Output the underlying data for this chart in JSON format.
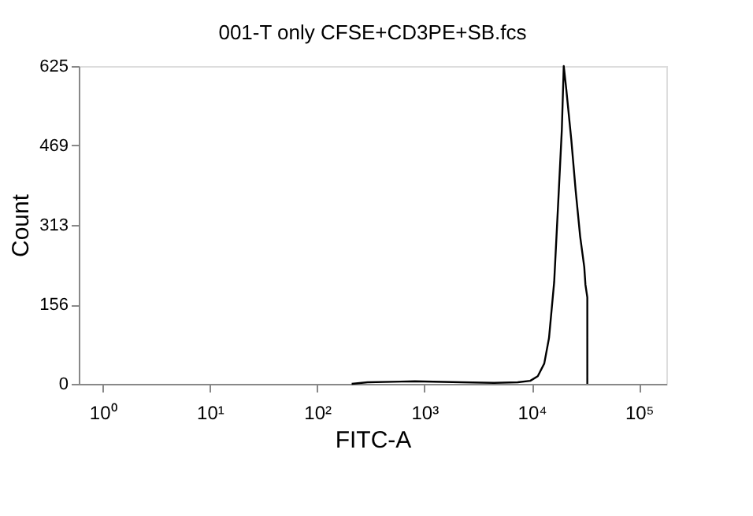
{
  "chart_data": {
    "type": "line",
    "title": "001-T only CFSE+CD3PE+SB.fcs",
    "xlabel": "FITC-A",
    "ylabel": "Count",
    "log": "x",
    "grid": false,
    "marker": "none",
    "line_style": "solid",
    "xlim": [
      0.6,
      180000
    ],
    "ylim": [
      0,
      625
    ],
    "xticks": [
      {
        "value": 1,
        "label": "10⁰"
      },
      {
        "value": 10,
        "label": "10¹"
      },
      {
        "value": 100,
        "label": "10²"
      },
      {
        "value": 1000,
        "label": "10³"
      },
      {
        "value": 10000,
        "label": "10⁴"
      },
      {
        "value": 100000,
        "label": "10⁵"
      }
    ],
    "yticks": [
      0,
      156,
      313,
      469,
      625
    ],
    "series": [
      {
        "color": "#000000",
        "x": [
          210,
          295,
          815,
          2240,
          4450,
          7400,
          9700,
          11400,
          13100,
          14500,
          16200,
          17800,
          19100,
          19900,
          21000,
          23400,
          25700,
          28300,
          30900,
          31700,
          33000,
          33000
        ],
        "values": [
          0,
          3,
          5,
          3,
          2,
          3,
          6,
          15,
          40,
          90,
          200,
          370,
          500,
          625,
          580,
          480,
          380,
          290,
          230,
          195,
          170,
          0
        ]
      }
    ]
  }
}
